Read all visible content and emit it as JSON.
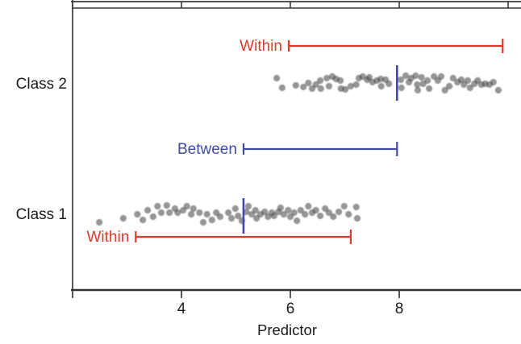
{
  "colors": {
    "within_red": "#dd3a2b",
    "between_blue": "#3e4ba4",
    "point_gray": "#3f3f3f",
    "axis_dark": "#3a3a3a",
    "text_black": "#1c1c1c"
  },
  "chart_data": {
    "type": "scatter",
    "title": "",
    "xlabel": "Predictor",
    "ylabel": "",
    "xlim": [
      2.0,
      10.25
    ],
    "grid": "off",
    "legend": "off",
    "axis": {
      "top_tick_values": [
        2,
        4,
        6,
        8,
        10
      ],
      "bottom_tick_values": [
        2,
        4,
        6,
        8
      ],
      "bottom_tick_labels": [
        {
          "value": 4,
          "label": "4"
        },
        {
          "value": 6,
          "label": "6"
        },
        {
          "value": 8,
          "label": "8"
        }
      ]
    },
    "rows": [
      {
        "label": "Class 2",
        "mean": 7.96,
        "points": [
          [
            5.75,
            -6
          ],
          [
            5.85,
            6
          ],
          [
            6.1,
            3
          ],
          [
            6.24,
            5
          ],
          [
            6.33,
            0
          ],
          [
            6.4,
            7
          ],
          [
            6.47,
            2
          ],
          [
            6.55,
            -3
          ],
          [
            6.56,
            7
          ],
          [
            6.67,
            -6
          ],
          [
            6.71,
            4
          ],
          [
            6.77,
            -8
          ],
          [
            6.84,
            -5
          ],
          [
            6.92,
            -3
          ],
          [
            6.93,
            7
          ],
          [
            7.01,
            8
          ],
          [
            7.11,
            4
          ],
          [
            7.21,
            2
          ],
          [
            7.26,
            -6
          ],
          [
            7.33,
            -8
          ],
          [
            7.41,
            -4
          ],
          [
            7.45,
            -7
          ],
          [
            7.51,
            -1
          ],
          [
            7.59,
            -3
          ],
          [
            7.66,
            -5
          ],
          [
            7.67,
            4
          ],
          [
            7.75,
            -4
          ],
          [
            7.81,
            1
          ],
          [
            8.03,
            -4
          ],
          [
            8.04,
            6
          ],
          [
            8.12,
            -9
          ],
          [
            8.18,
            -1
          ],
          [
            8.22,
            -6
          ],
          [
            8.3,
            -9
          ],
          [
            8.33,
            2
          ],
          [
            8.34,
            9
          ],
          [
            8.41,
            -7
          ],
          [
            8.44,
            1
          ],
          [
            8.52,
            -3
          ],
          [
            8.55,
            7
          ],
          [
            8.64,
            -8
          ],
          [
            8.71,
            -3
          ],
          [
            8.77,
            -8
          ],
          [
            8.84,
            9
          ],
          [
            8.92,
            4
          ],
          [
            8.99,
            -6
          ],
          [
            9.07,
            -1
          ],
          [
            9.14,
            -4
          ],
          [
            9.19,
            2
          ],
          [
            9.26,
            -3
          ],
          [
            9.3,
            6
          ],
          [
            9.38,
            1
          ],
          [
            9.44,
            -3
          ],
          [
            9.51,
            2
          ],
          [
            9.58,
            1
          ],
          [
            9.66,
            2
          ],
          [
            9.73,
            -1
          ],
          [
            9.82,
            9
          ]
        ]
      },
      {
        "label": "Class 1",
        "mean": 5.14,
        "points": [
          [
            2.49,
            8
          ],
          [
            2.93,
            3
          ],
          [
            3.19,
            -2
          ],
          [
            3.29,
            5
          ],
          [
            3.38,
            -7
          ],
          [
            3.48,
            1
          ],
          [
            3.56,
            -12
          ],
          [
            3.63,
            -4
          ],
          [
            3.73,
            -13
          ],
          [
            3.78,
            -4
          ],
          [
            3.88,
            -9
          ],
          [
            3.93,
            -4
          ],
          [
            4.03,
            -7
          ],
          [
            4.1,
            -12
          ],
          [
            4.18,
            -2
          ],
          [
            4.22,
            -9
          ],
          [
            4.33,
            -4
          ],
          [
            4.4,
            8
          ],
          [
            4.47,
            -2
          ],
          [
            4.56,
            5
          ],
          [
            4.64,
            -4
          ],
          [
            4.71,
            1
          ],
          [
            4.86,
            -4
          ],
          [
            4.92,
            3
          ],
          [
            4.99,
            -9
          ],
          [
            5.04,
            0
          ],
          [
            5.11,
            6
          ],
          [
            5.19,
            -5
          ],
          [
            5.23,
            -12
          ],
          [
            5.29,
            -2
          ],
          [
            5.36,
            -7
          ],
          [
            5.38,
            3
          ],
          [
            5.45,
            -2
          ],
          [
            5.53,
            -5
          ],
          [
            5.59,
            1
          ],
          [
            5.66,
            -4
          ],
          [
            5.7,
            0
          ],
          [
            5.78,
            -5
          ],
          [
            5.82,
            -10
          ],
          [
            5.88,
            -2
          ],
          [
            5.96,
            -7
          ],
          [
            6,
            1
          ],
          [
            6.07,
            -4
          ],
          [
            6.12,
            6
          ],
          [
            6.19,
            -7
          ],
          [
            6.27,
            -2
          ],
          [
            6.33,
            -12
          ],
          [
            6.4,
            -4
          ],
          [
            6.47,
            -7
          ],
          [
            6.55,
            0
          ],
          [
            6.64,
            -9
          ],
          [
            6.71,
            -4
          ],
          [
            6.79,
            1
          ],
          [
            6.89,
            -5
          ],
          [
            6.99,
            -12
          ],
          [
            7.07,
            -2
          ],
          [
            7.21,
            -11
          ],
          [
            7.23,
            3
          ]
        ]
      }
    ],
    "intervals": [
      {
        "label": "Within",
        "color_key": "within_red",
        "from": 5.97,
        "to": 9.9,
        "refers_to": "Class 2"
      },
      {
        "label": "Between",
        "color_key": "between_blue",
        "from": 5.14,
        "to": 7.96,
        "refers_to": "class means"
      },
      {
        "label": "Within",
        "color_key": "within_red",
        "from": 3.16,
        "to": 7.11,
        "refers_to": "Class 1"
      }
    ]
  }
}
